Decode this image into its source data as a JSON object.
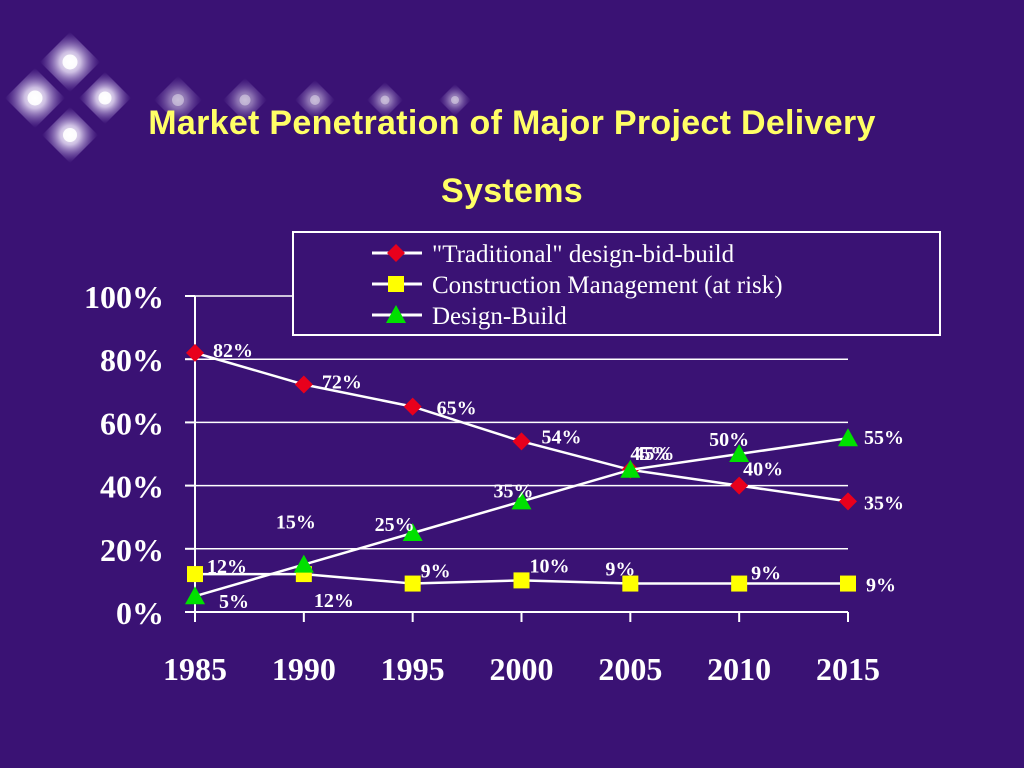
{
  "title": {
    "line1": "Market Penetration of Major Project Delivery",
    "line2": "Systems"
  },
  "colors": {
    "background": "#3a1274",
    "title": "#ffff66",
    "text": "#ffffff",
    "traditional_marker": "#e8001c",
    "cm_marker": "#ffff00",
    "db_marker": "#00e000"
  },
  "chart_data": {
    "type": "line",
    "x": [
      "1985",
      "1990",
      "1995",
      "2000",
      "2005",
      "2010",
      "2015"
    ],
    "yticks": [
      "100%",
      "80%",
      "60%",
      "40%",
      "20%",
      "0%"
    ],
    "ylim": [
      0,
      100
    ],
    "grid": true,
    "legend": "top-right",
    "series": [
      {
        "name": "\"Traditional\" design-bid-build",
        "marker": "diamond",
        "values": [
          82,
          72,
          65,
          54,
          45,
          40,
          35
        ],
        "labels": [
          "82%",
          "72%",
          "65%",
          "54%",
          "45%",
          "40%",
          "35%"
        ]
      },
      {
        "name": "Construction Management (at risk)",
        "marker": "square",
        "values": [
          12,
          12,
          9,
          10,
          9,
          9,
          9
        ],
        "labels": [
          "12%",
          "12%",
          "9%",
          "10%",
          "9%",
          "9%",
          "9%"
        ]
      },
      {
        "name": "Design-Build",
        "marker": "triangle",
        "values": [
          5,
          15,
          25,
          35,
          45,
          50,
          55
        ],
        "labels": [
          "5%",
          "15%",
          "25%",
          "35%",
          "45%",
          "50%",
          "55%"
        ]
      }
    ]
  }
}
